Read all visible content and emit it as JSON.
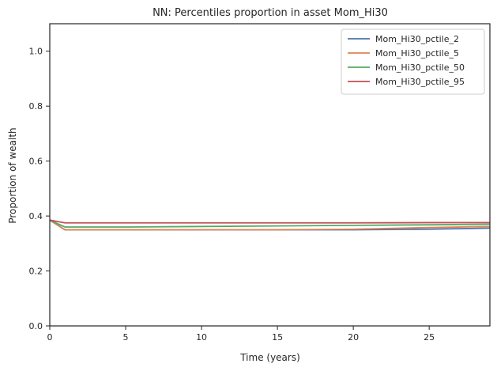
{
  "chart_data": {
    "type": "line",
    "title": "NN: Percentiles proportion in asset Mom_Hi30",
    "xlabel": "Time (years)",
    "ylabel": "Proportion of wealth",
    "xlim": [
      0,
      29
    ],
    "ylim": [
      0,
      1.1
    ],
    "xticks": [
      0,
      5,
      10,
      15,
      20,
      25
    ],
    "yticks": [
      0.0,
      0.2,
      0.4,
      0.6,
      0.8,
      1.0
    ],
    "xtick_labels": [
      "0",
      "5",
      "10",
      "15",
      "20",
      "25"
    ],
    "ytick_labels": [
      "0.0",
      "0.2",
      "0.4",
      "0.6",
      "0.8",
      "1.0"
    ],
    "grid": false,
    "legend_position": "top-right",
    "series": [
      {
        "name": "Mom_Hi30_pctile_2",
        "color": "#4c72b0",
        "x": [
          0,
          1,
          5,
          10,
          15,
          20,
          25,
          29
        ],
        "y": [
          0.385,
          0.35,
          0.35,
          0.35,
          0.35,
          0.35,
          0.352,
          0.356
        ]
      },
      {
        "name": "Mom_Hi30_pctile_5",
        "color": "#dd8452",
        "x": [
          0,
          1,
          5,
          10,
          15,
          20,
          25,
          29
        ],
        "y": [
          0.385,
          0.35,
          0.35,
          0.35,
          0.35,
          0.352,
          0.358,
          0.362
        ]
      },
      {
        "name": "Mom_Hi30_pctile_50",
        "color": "#55a868",
        "x": [
          0,
          1,
          5,
          10,
          15,
          20,
          25,
          29
        ],
        "y": [
          0.385,
          0.36,
          0.36,
          0.362,
          0.364,
          0.366,
          0.368,
          0.37
        ]
      },
      {
        "name": "Mom_Hi30_pctile_95",
        "color": "#c44e52",
        "x": [
          0,
          1,
          5,
          10,
          15,
          20,
          25,
          29
        ],
        "y": [
          0.385,
          0.375,
          0.375,
          0.375,
          0.375,
          0.375,
          0.376,
          0.376
        ]
      }
    ]
  }
}
